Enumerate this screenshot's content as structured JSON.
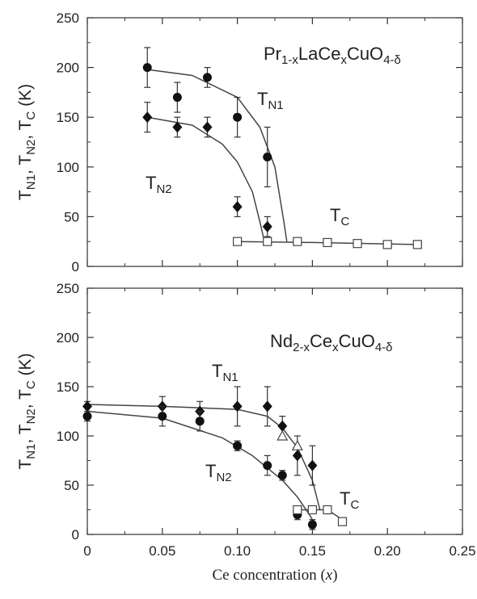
{
  "chart_data": [
    {
      "type": "scatter",
      "panel": "top",
      "annotations": {
        "compound": {
          "prefix": "Pr",
          "s1": "1-x",
          "mid": "LaCe",
          "s2": "x",
          "mid2": "CuO",
          "s3": "4-δ"
        },
        "tn1": {
          "main": "T",
          "sub": "N1"
        },
        "tn2": {
          "main": "T",
          "sub": "N2"
        },
        "tc": {
          "main": "T",
          "sub": "C"
        }
      },
      "ylabel": "T_N1, T_N2, T_C (K)",
      "ylim": [
        0,
        250
      ],
      "yticks": [
        "0",
        "50",
        "100",
        "150",
        "200",
        "250"
      ],
      "xlim": [
        0,
        0.25
      ],
      "series": [
        {
          "marker": "filled-circle",
          "x": [
            0.04,
            0.06,
            0.08,
            0.1,
            0.12
          ],
          "y": [
            200,
            170,
            190,
            150,
            110
          ],
          "err": [
            20,
            15,
            10,
            20,
            30
          ]
        },
        {
          "marker": "filled-diamond",
          "x": [
            0.04,
            0.06,
            0.08,
            0.1,
            0.12
          ],
          "y": [
            150,
            140,
            140,
            60,
            40
          ],
          "err": [
            15,
            10,
            10,
            10,
            10
          ]
        },
        {
          "marker": "open-square",
          "x": [
            0.1,
            0.12,
            0.14,
            0.16,
            0.18,
            0.2,
            0.22
          ],
          "y": [
            25,
            25,
            25,
            24,
            23,
            22,
            22
          ],
          "err": []
        }
      ],
      "fit_curves": [
        {
          "x": [
            0.04,
            0.07,
            0.1,
            0.115,
            0.125,
            0.131,
            0.133
          ],
          "y": [
            198,
            192,
            170,
            140,
            100,
            45,
            25
          ]
        },
        {
          "x": [
            0.04,
            0.07,
            0.09,
            0.1,
            0.11,
            0.115,
            0.118
          ],
          "y": [
            150,
            142,
            123,
            105,
            75,
            45,
            25
          ]
        },
        {
          "x": [
            0.1,
            0.15,
            0.22
          ],
          "y": [
            25,
            24,
            22
          ]
        }
      ]
    },
    {
      "type": "scatter",
      "panel": "bottom",
      "annotations": {
        "compound": {
          "prefix": "Nd",
          "s1": "2-x",
          "mid": "Ce",
          "s2": "x",
          "mid2": "CuO",
          "s3": "4-δ"
        },
        "tn1": {
          "main": "T",
          "sub": "N1"
        },
        "tn2": {
          "main": "T",
          "sub": "N2"
        },
        "tc": {
          "main": "T",
          "sub": "C"
        }
      },
      "ylabel": "T_N1, T_N2, T_C (K)",
      "xlabel": "Ce concentration (x)",
      "ylim": [
        0,
        250
      ],
      "yticks": [
        "0",
        "50",
        "100",
        "150",
        "200",
        "250"
      ],
      "xlim": [
        0,
        0.25
      ],
      "xticks": [
        "0",
        "0.05",
        "0.10",
        "0.15",
        "0.20",
        "0.25"
      ],
      "series": [
        {
          "marker": "filled-diamond",
          "x": [
            0,
            0.05,
            0.075,
            0.1,
            0.12,
            0.13,
            0.14,
            0.15
          ],
          "y": [
            130,
            130,
            125,
            130,
            130,
            110,
            80,
            70
          ],
          "err": [
            5,
            10,
            10,
            20,
            20,
            10,
            20,
            20
          ]
        },
        {
          "marker": "filled-circle",
          "x": [
            0,
            0.05,
            0.075,
            0.1,
            0.12,
            0.13,
            0.14,
            0.15
          ],
          "y": [
            120,
            120,
            115,
            90,
            70,
            60,
            20,
            10
          ],
          "err": [
            5,
            10,
            10,
            5,
            10,
            5,
            5,
            5
          ]
        },
        {
          "marker": "open-triangle",
          "x": [
            0.13,
            0.14
          ],
          "y": [
            100,
            90
          ],
          "err": []
        },
        {
          "marker": "open-square",
          "x": [
            0.14,
            0.15,
            0.16,
            0.17
          ],
          "y": [
            25,
            25,
            25,
            13
          ],
          "err": []
        }
      ],
      "fit_curves": [
        {
          "x": [
            0,
            0.05,
            0.1,
            0.12,
            0.13,
            0.14,
            0.15,
            0.155
          ],
          "y": [
            132,
            130,
            127,
            120,
            108,
            88,
            55,
            25
          ]
        },
        {
          "x": [
            0,
            0.05,
            0.09,
            0.11,
            0.13,
            0.14,
            0.148,
            0.152
          ],
          "y": [
            125,
            118,
            98,
            80,
            55,
            38,
            20,
            10
          ]
        },
        {
          "x": [
            0.14,
            0.16,
            0.172
          ],
          "y": [
            25,
            25,
            13
          ]
        }
      ]
    }
  ]
}
